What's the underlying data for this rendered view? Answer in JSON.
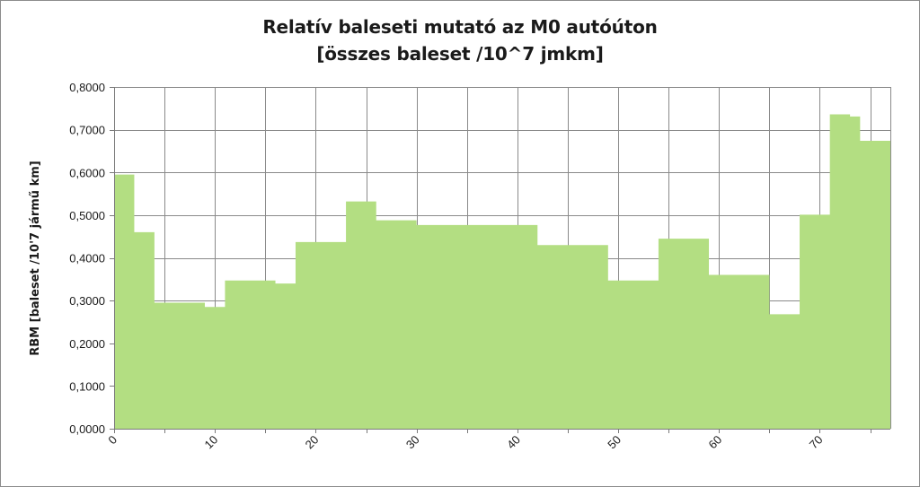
{
  "chart_data": {
    "type": "area",
    "title": "Relatív baleseti mutató az M0 autóúton",
    "subtitle": "[összes baleset /10^7 jmkm]",
    "ylabel": "RBM [baleset /10'7 jármű km]",
    "xlabel": "",
    "xlim": [
      0,
      77
    ],
    "ylim": [
      0,
      0.8
    ],
    "yticks": [
      "0,0000",
      "0,1000",
      "0,2000",
      "0,3000",
      "0,4000",
      "0,5000",
      "0,6000",
      "0,7000",
      "0,8000"
    ],
    "xticks": [
      "0",
      "10",
      "20",
      "30",
      "40",
      "50",
      "60",
      "70"
    ],
    "xtick_values": [
      0,
      10,
      20,
      30,
      40,
      50,
      60,
      70
    ],
    "grid": true,
    "legend": "none",
    "color": "#b3de82",
    "series": [
      {
        "x": [
          0,
          2,
          4,
          9,
          11,
          16,
          18,
          23,
          26,
          30,
          42,
          49,
          54,
          59,
          65,
          68,
          71,
          73,
          74,
          77
        ],
        "values": [
          0.595,
          0.46,
          0.295,
          0.285,
          0.347,
          0.34,
          0.437,
          0.532,
          0.488,
          0.477,
          0.43,
          0.347,
          0.445,
          0.36,
          0.268,
          0.501,
          0.736,
          0.731,
          0.674,
          0.674
        ]
      }
    ]
  }
}
